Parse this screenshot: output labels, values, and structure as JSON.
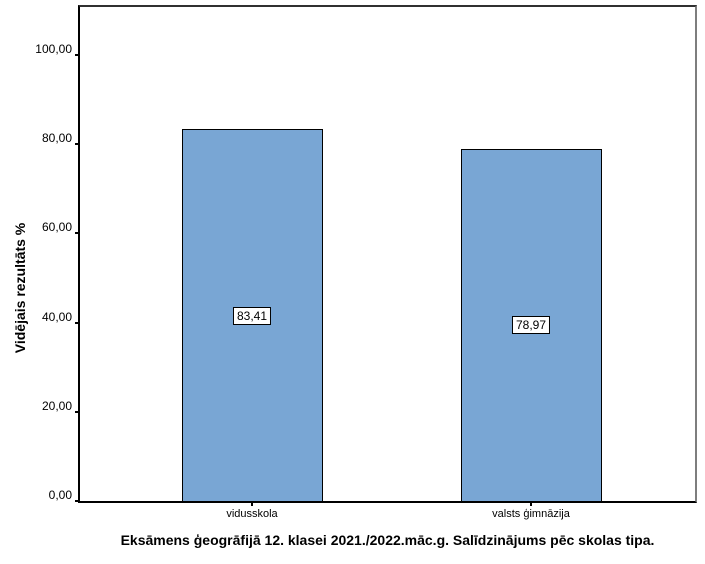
{
  "chart_data": {
    "type": "bar",
    "title": "Eksāmens ģeogrāfijā 12. klasei 2021./2022.māc.g. Salīdzinājums pēc skolas tipa.",
    "xlabel": "",
    "ylabel": "Vidējais rezultāts %",
    "categories": [
      "vidusskola",
      "valsts ģimnāzija"
    ],
    "values": [
      83.41,
      78.97
    ],
    "value_labels": [
      "83,41",
      "78,97"
    ],
    "y_tick_values": [
      0,
      20,
      40,
      60,
      80,
      100
    ],
    "y_tick_labels": [
      "0,00",
      "20,00",
      "40,00",
      "60,00",
      "80,00",
      "100,00"
    ],
    "ylim": [
      0,
      111.66
    ],
    "grid": false,
    "legend": false,
    "bar_fill_color": "#79A6D4",
    "bar_border_color": "#000000",
    "value_label_bg_color": "#ffffff",
    "value_label_border_color": "#000000",
    "text_color": "#000000",
    "background_color": "#ffffff"
  }
}
